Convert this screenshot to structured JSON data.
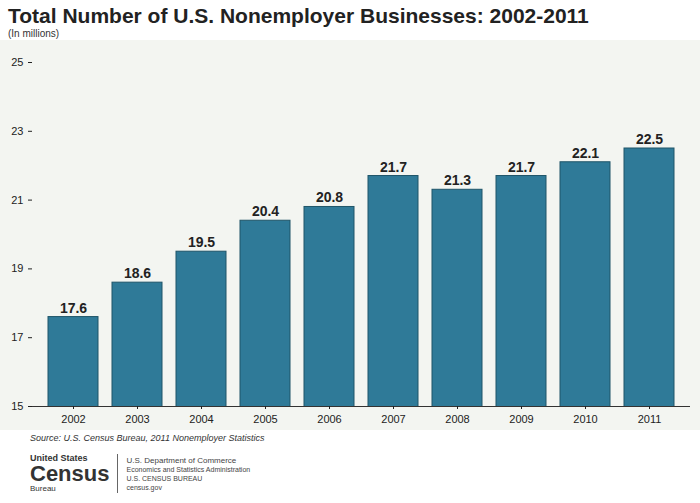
{
  "chart_data": {
    "type": "bar",
    "title": "Total Number of U.S. Nonemployer Businesses: 2002-2011",
    "subtitle": "(In millions)",
    "categories": [
      "2002",
      "2003",
      "2004",
      "2005",
      "2006",
      "2007",
      "2008",
      "2009",
      "2010",
      "2011"
    ],
    "values": [
      17.6,
      18.6,
      19.5,
      20.4,
      20.8,
      21.7,
      21.3,
      21.7,
      22.1,
      22.5
    ],
    "color": "#2f7a98",
    "ylim": [
      15,
      25
    ],
    "yticks": [
      15,
      17,
      19,
      21,
      23,
      25
    ],
    "grid": false,
    "data_labels": true,
    "source": "Source:  U.S. Census Bureau, 2011 Nonemployer Statistics",
    "footer": [
      "United States",
      "Census",
      "Bureau",
      "U.S. Department of Commerce",
      "Economics and Statistics Administration",
      "U.S. CENSUS BUREAU",
      "census.gov"
    ]
  }
}
